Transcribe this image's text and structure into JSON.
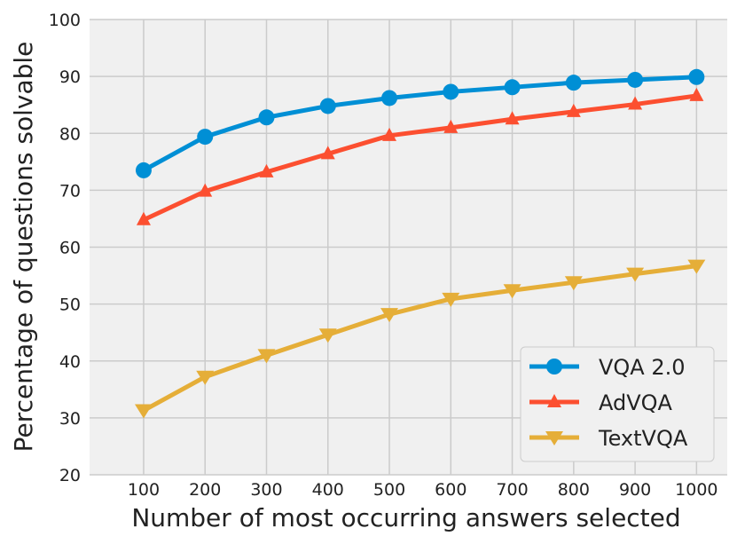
{
  "chart_data": {
    "type": "line",
    "title": "",
    "xlabel": "Number of most occurring answers selected",
    "ylabel": "Percentage of questions solvable",
    "x": [
      100,
      200,
      300,
      400,
      500,
      600,
      700,
      800,
      900,
      1000
    ],
    "xticks": [
      "100",
      "200",
      "300",
      "400",
      "500",
      "600",
      "700",
      "800",
      "900",
      "1000"
    ],
    "yticks": [
      "20",
      "30",
      "40",
      "50",
      "60",
      "70",
      "80",
      "90",
      "100"
    ],
    "xlim": [
      12,
      1050
    ],
    "ylim": [
      20,
      100
    ],
    "grid": true,
    "legend_position": "bottom-right",
    "series": [
      {
        "name": "VQA 2.0",
        "marker": "circle",
        "color": "#008fd5",
        "values": [
          73.5,
          79.4,
          82.8,
          84.8,
          86.2,
          87.3,
          88.1,
          88.9,
          89.4,
          89.9
        ]
      },
      {
        "name": "AdVQA",
        "marker": "triangle-up",
        "color": "#fc4f30",
        "values": [
          64.8,
          69.8,
          73.2,
          76.4,
          79.6,
          81.0,
          82.5,
          83.8,
          85.1,
          86.6
        ]
      },
      {
        "name": "TextVQA",
        "marker": "triangle-down",
        "color": "#e5ae38",
        "values": [
          31.3,
          37.2,
          41.0,
          44.6,
          48.2,
          50.9,
          52.4,
          53.8,
          55.3,
          56.7
        ]
      }
    ]
  }
}
